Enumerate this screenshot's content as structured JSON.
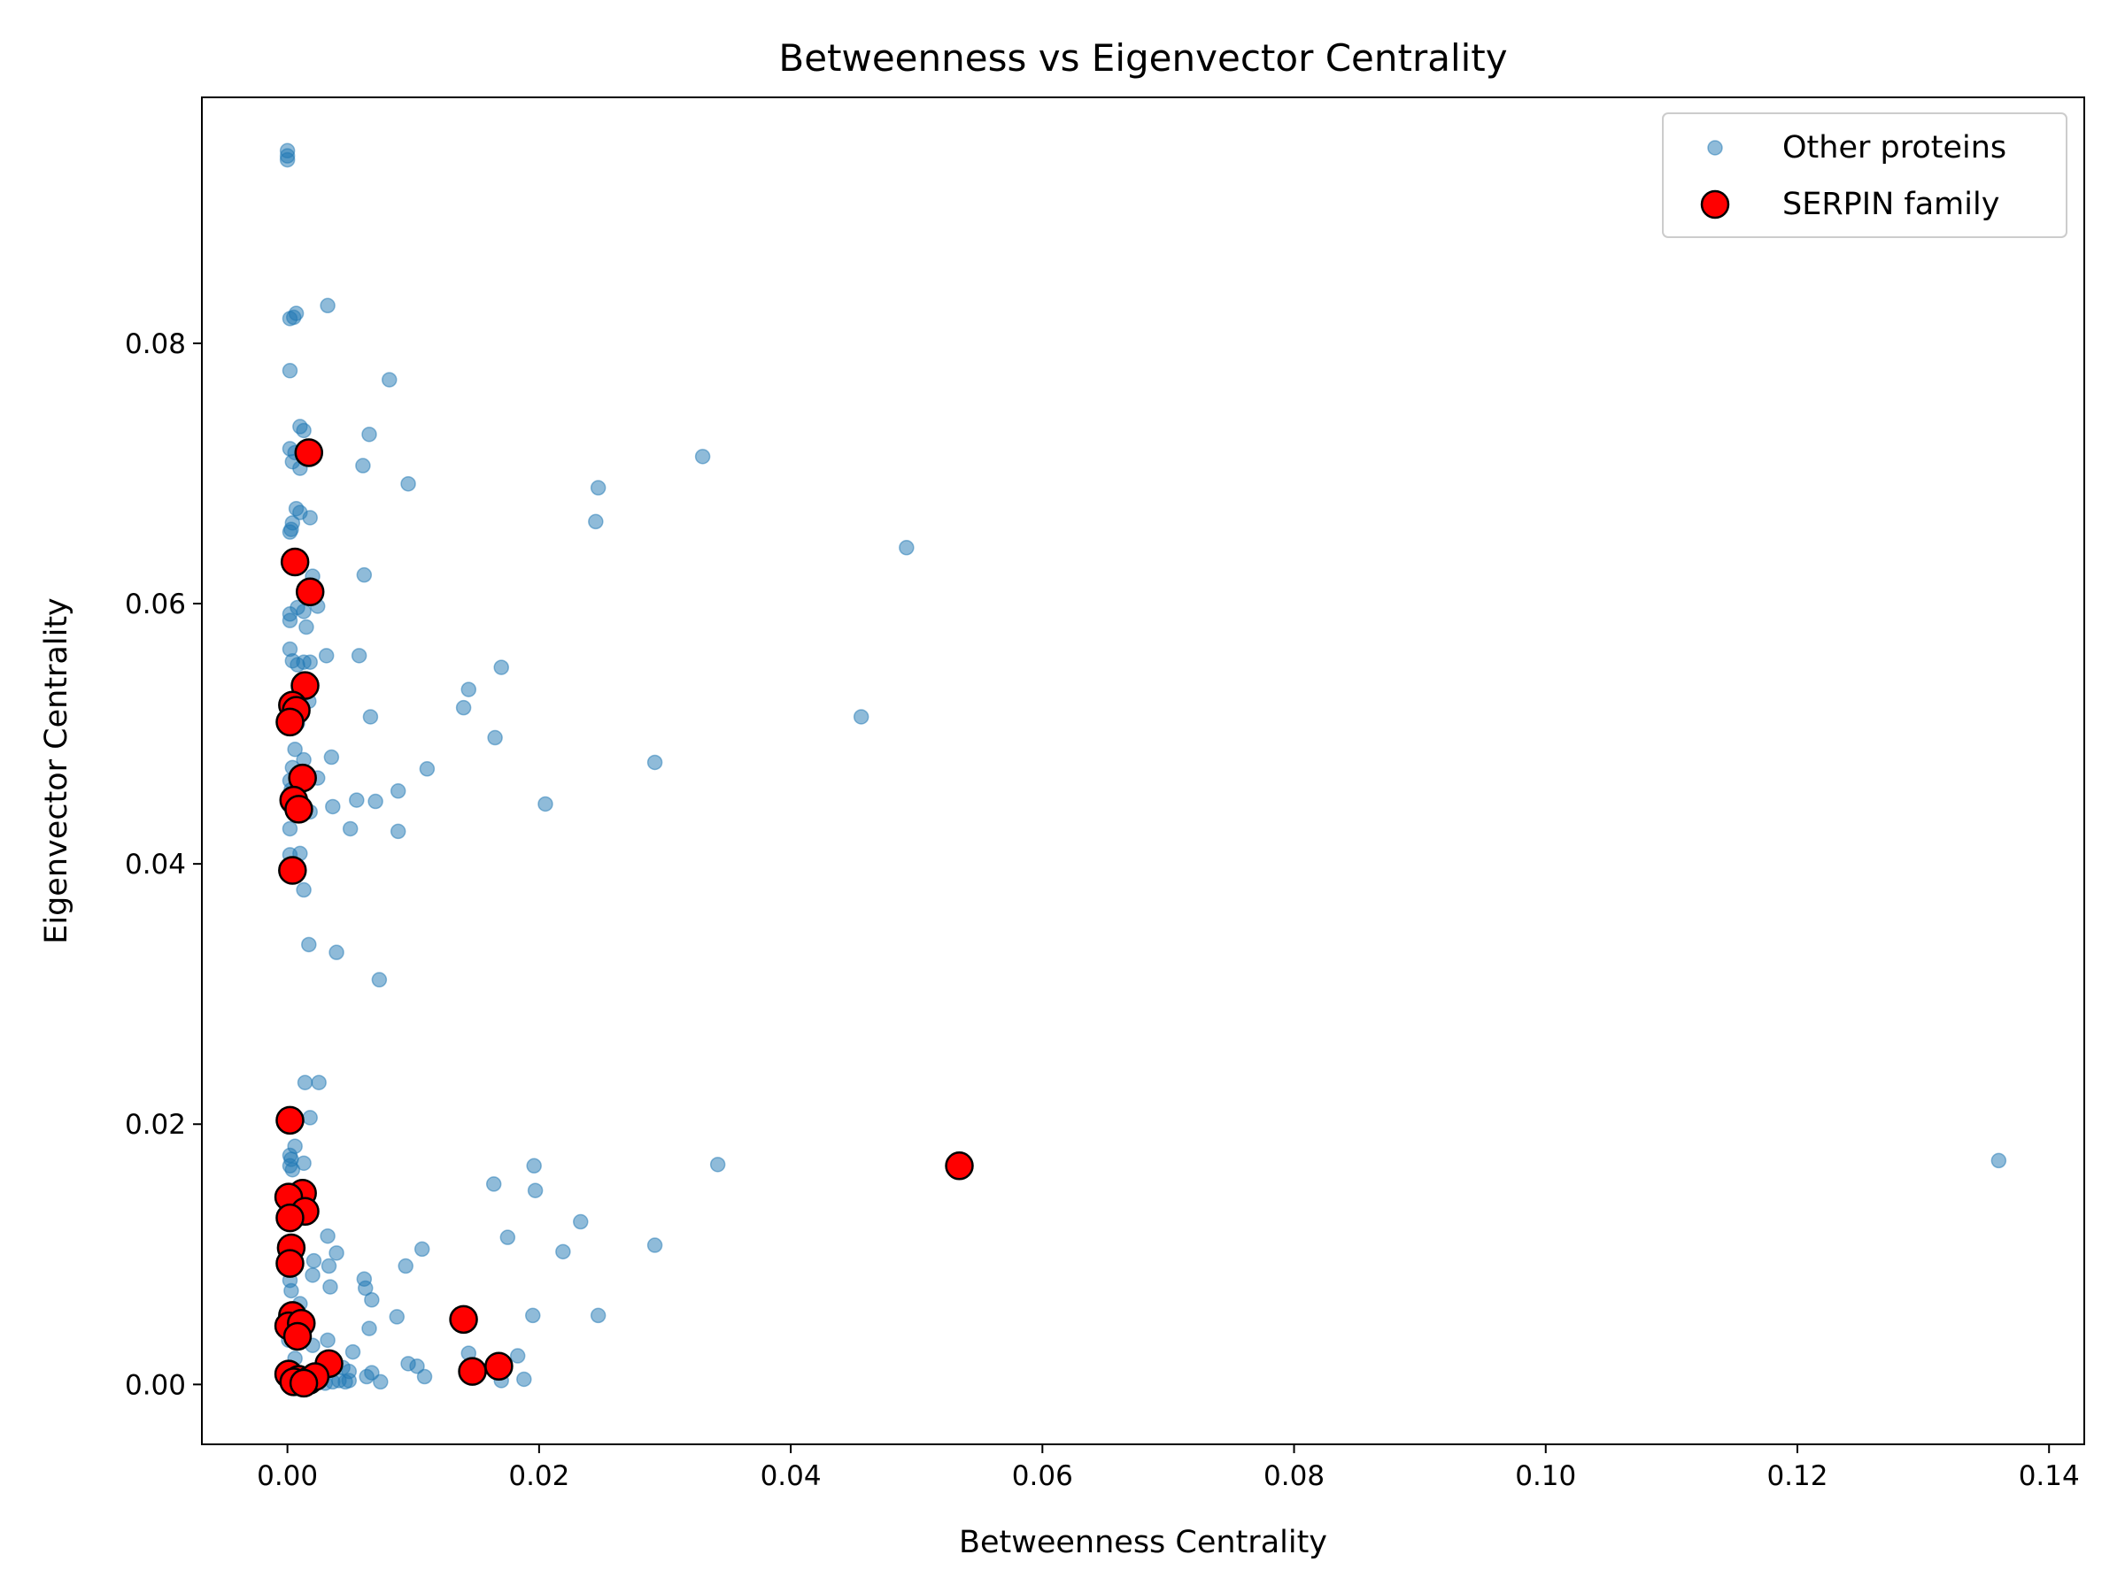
{
  "chart_data": {
    "type": "scatter",
    "title": "Betweenness vs Eigenvector Centrality",
    "xlabel": "Betweenness Centrality",
    "ylabel": "Eigenvector Centrality",
    "xlim": [
      -0.0068,
      0.1428
    ],
    "ylim": [
      -0.0046,
      0.0989
    ],
    "xticks": [
      0.0,
      0.02,
      0.04,
      0.06,
      0.08,
      0.1,
      0.12,
      0.14
    ],
    "xtick_labels": [
      "0.00",
      "0.02",
      "0.04",
      "0.06",
      "0.08",
      "0.10",
      "0.12",
      "0.14"
    ],
    "yticks": [
      0.0,
      0.02,
      0.04,
      0.06,
      0.08
    ],
    "ytick_labels": [
      "0.00",
      "0.02",
      "0.04",
      "0.06",
      "0.08"
    ],
    "grid": false,
    "legend_position": "top-right",
    "series": [
      {
        "name": "Other proteins",
        "color": "#1f77b4",
        "alpha": 0.5,
        "marker": "small-circle",
        "points": [
          [
            0.0,
            0.0948
          ],
          [
            0.0,
            0.0944
          ],
          [
            0.0,
            0.0941
          ],
          [
            0.0002,
            0.0819
          ],
          [
            0.0005,
            0.082
          ],
          [
            0.0007,
            0.0823
          ],
          [
            0.0032,
            0.0829
          ],
          [
            0.0002,
            0.0779
          ],
          [
            0.0081,
            0.0772
          ],
          [
            0.001,
            0.0736
          ],
          [
            0.0013,
            0.0733
          ],
          [
            0.0065,
            0.073
          ],
          [
            0.0002,
            0.0719
          ],
          [
            0.0006,
            0.0716
          ],
          [
            0.0004,
            0.0709
          ],
          [
            0.001,
            0.0704
          ],
          [
            0.006,
            0.0706
          ],
          [
            0.0096,
            0.0692
          ],
          [
            0.033,
            0.0713
          ],
          [
            0.0247,
            0.0689
          ],
          [
            0.0245,
            0.0663
          ],
          [
            0.0492,
            0.0643
          ],
          [
            0.0007,
            0.0673
          ],
          [
            0.001,
            0.067
          ],
          [
            0.0018,
            0.0666
          ],
          [
            0.0004,
            0.0662
          ],
          [
            0.0003,
            0.0657
          ],
          [
            0.0002,
            0.0655
          ],
          [
            0.002,
            0.0621
          ],
          [
            0.0061,
            0.0622
          ],
          [
            0.0019,
            0.0613
          ],
          [
            0.0002,
            0.0592
          ],
          [
            0.0008,
            0.0597
          ],
          [
            0.0013,
            0.0594
          ],
          [
            0.0024,
            0.0598
          ],
          [
            0.0002,
            0.0587
          ],
          [
            0.0015,
            0.0582
          ],
          [
            0.0002,
            0.0565
          ],
          [
            0.0004,
            0.0556
          ],
          [
            0.0008,
            0.0553
          ],
          [
            0.0013,
            0.0555
          ],
          [
            0.0018,
            0.0555
          ],
          [
            0.0031,
            0.056
          ],
          [
            0.0057,
            0.056
          ],
          [
            0.017,
            0.0551
          ],
          [
            0.0144,
            0.0534
          ],
          [
            0.014,
            0.052
          ],
          [
            0.0066,
            0.0513
          ],
          [
            0.0456,
            0.0513
          ],
          [
            0.0165,
            0.0497
          ],
          [
            0.0017,
            0.0525
          ],
          [
            0.0008,
            0.0508
          ],
          [
            0.0006,
            0.0488
          ],
          [
            0.0013,
            0.048
          ],
          [
            0.0035,
            0.0482
          ],
          [
            0.0004,
            0.0474
          ],
          [
            0.0111,
            0.0473
          ],
          [
            0.0292,
            0.0478
          ],
          [
            0.0002,
            0.0464
          ],
          [
            0.0024,
            0.0466
          ],
          [
            0.0003,
            0.0457
          ],
          [
            0.0088,
            0.0456
          ],
          [
            0.0055,
            0.0449
          ],
          [
            0.007,
            0.0448
          ],
          [
            0.0036,
            0.0444
          ],
          [
            0.0018,
            0.044
          ],
          [
            0.0205,
            0.0446
          ],
          [
            0.005,
            0.0427
          ],
          [
            0.0088,
            0.0425
          ],
          [
            0.0002,
            0.0427
          ],
          [
            0.001,
            0.0408
          ],
          [
            0.0002,
            0.0407
          ],
          [
            0.0013,
            0.038
          ],
          [
            0.0017,
            0.0338
          ],
          [
            0.0039,
            0.0332
          ],
          [
            0.0073,
            0.0311
          ],
          [
            0.0014,
            0.0232
          ],
          [
            0.0025,
            0.0232
          ],
          [
            0.0018,
            0.0205
          ],
          [
            0.0006,
            0.0183
          ],
          [
            0.0002,
            0.0176
          ],
          [
            0.0003,
            0.0173
          ],
          [
            0.0002,
            0.0168
          ],
          [
            0.0013,
            0.017
          ],
          [
            0.0004,
            0.0165
          ],
          [
            0.0164,
            0.0154
          ],
          [
            0.0196,
            0.0168
          ],
          [
            0.0342,
            0.0169
          ],
          [
            0.136,
            0.0172
          ],
          [
            0.0197,
            0.0149
          ],
          [
            0.0233,
            0.0125
          ],
          [
            0.0175,
            0.0113
          ],
          [
            0.0219,
            0.0102
          ],
          [
            0.0292,
            0.0107
          ],
          [
            0.0107,
            0.0104
          ],
          [
            0.0094,
            0.0091
          ],
          [
            0.0032,
            0.0114
          ],
          [
            0.0039,
            0.0101
          ],
          [
            0.0021,
            0.0095
          ],
          [
            0.0033,
            0.0091
          ],
          [
            0.0002,
            0.009
          ],
          [
            0.002,
            0.0084
          ],
          [
            0.0034,
            0.0075
          ],
          [
            0.0061,
            0.0081
          ],
          [
            0.0062,
            0.0074
          ],
          [
            0.0067,
            0.0065
          ],
          [
            0.0002,
            0.008
          ],
          [
            0.0003,
            0.0072
          ],
          [
            0.001,
            0.0062
          ],
          [
            0.0087,
            0.0052
          ],
          [
            0.0195,
            0.0053
          ],
          [
            0.0247,
            0.0053
          ],
          [
            0.0065,
            0.0043
          ],
          [
            0.0032,
            0.0034
          ],
          [
            0.002,
            0.003
          ],
          [
            0.0001,
            0.0034
          ],
          [
            0.0052,
            0.0025
          ],
          [
            0.0144,
            0.0024
          ],
          [
            0.0183,
            0.0022
          ],
          [
            0.0096,
            0.0016
          ],
          [
            0.0103,
            0.0014
          ],
          [
            0.0044,
            0.0013
          ],
          [
            0.0049,
            0.001
          ],
          [
            0.0021,
            0.0011
          ],
          [
            0.0006,
            0.002
          ],
          [
            0.0067,
            0.0009
          ],
          [
            0.0063,
            0.0006
          ],
          [
            0.0109,
            0.0006
          ],
          [
            0.0049,
            0.0003
          ],
          [
            0.0046,
            0.0002
          ],
          [
            0.0041,
            0.0003
          ],
          [
            0.0074,
            0.0002
          ],
          [
            0.017,
            0.0003
          ],
          [
            0.0188,
            0.0004
          ],
          [
            0.0001,
            0.0001
          ],
          [
            0.0003,
            0.0
          ],
          [
            0.0007,
            0.0002
          ],
          [
            0.0012,
            0.0001
          ],
          [
            0.0016,
            0.0
          ],
          [
            0.0024,
            0.0002
          ],
          [
            0.003,
            0.0001
          ],
          [
            0.0036,
            0.0002
          ]
        ]
      },
      {
        "name": "SERPIN family",
        "color": "#ff0000",
        "edge_color": "#000000",
        "marker": "large-circle",
        "points": [
          [
            0.0017,
            0.0716
          ],
          [
            0.0006,
            0.0632
          ],
          [
            0.0018,
            0.0609
          ],
          [
            0.0014,
            0.0537
          ],
          [
            0.0004,
            0.0522
          ],
          [
            0.0007,
            0.0518
          ],
          [
            0.0002,
            0.0509
          ],
          [
            0.0012,
            0.0466
          ],
          [
            0.0005,
            0.0449
          ],
          [
            0.0009,
            0.0442
          ],
          [
            0.0004,
            0.0395
          ],
          [
            0.0002,
            0.0203
          ],
          [
            0.0534,
            0.0168
          ],
          [
            0.0012,
            0.0147
          ],
          [
            0.0001,
            0.0144
          ],
          [
            0.0014,
            0.0133
          ],
          [
            0.0002,
            0.0128
          ],
          [
            0.0003,
            0.0105
          ],
          [
            0.0002,
            0.0093
          ],
          [
            0.0004,
            0.0053
          ],
          [
            0.0001,
            0.0045
          ],
          [
            0.0011,
            0.0047
          ],
          [
            0.0008,
            0.0037
          ],
          [
            0.014,
            0.005
          ],
          [
            0.0033,
            0.0016
          ],
          [
            0.0168,
            0.0014
          ],
          [
            0.0147,
            0.001
          ],
          [
            0.0001,
            0.0008
          ],
          [
            0.0009,
            0.0004
          ],
          [
            0.0017,
            0.0003
          ],
          [
            0.0022,
            0.0006
          ],
          [
            0.0005,
            0.0002
          ],
          [
            0.0013,
            0.0001
          ]
        ]
      }
    ]
  }
}
